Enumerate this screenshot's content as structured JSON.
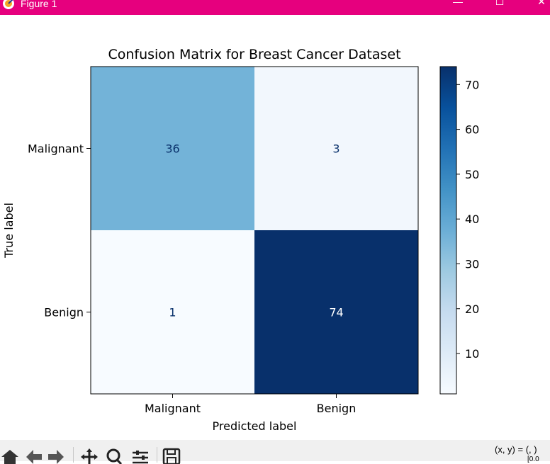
{
  "window": {
    "title": "Figure 1",
    "minimize_glyph": "—",
    "maximize_glyph": "☐",
    "close_glyph": "✕",
    "titlebar_color": "#e6007e"
  },
  "toolbar": {
    "buttons": [
      "home-icon",
      "back-icon",
      "forward-icon",
      "pan-icon",
      "zoom-icon",
      "configure-subplots-icon",
      "save-icon"
    ],
    "coords_text": "(x, y) = (, )",
    "coords_subtext": "[0.0"
  },
  "chart_data": {
    "type": "heatmap",
    "title": "Confusion Matrix for Breast Cancer Dataset",
    "xlabel": "Predicted label",
    "ylabel": "True label",
    "x_categories": [
      "Malignant",
      "Benign"
    ],
    "y_categories": [
      "Malignant",
      "Benign"
    ],
    "values": [
      [
        36,
        3
      ],
      [
        1,
        74
      ]
    ],
    "colormap": "Blues",
    "colorbar": {
      "min": 1,
      "max": 74,
      "ticks": [
        10,
        20,
        30,
        40,
        50,
        60,
        70
      ]
    },
    "grid": false
  }
}
